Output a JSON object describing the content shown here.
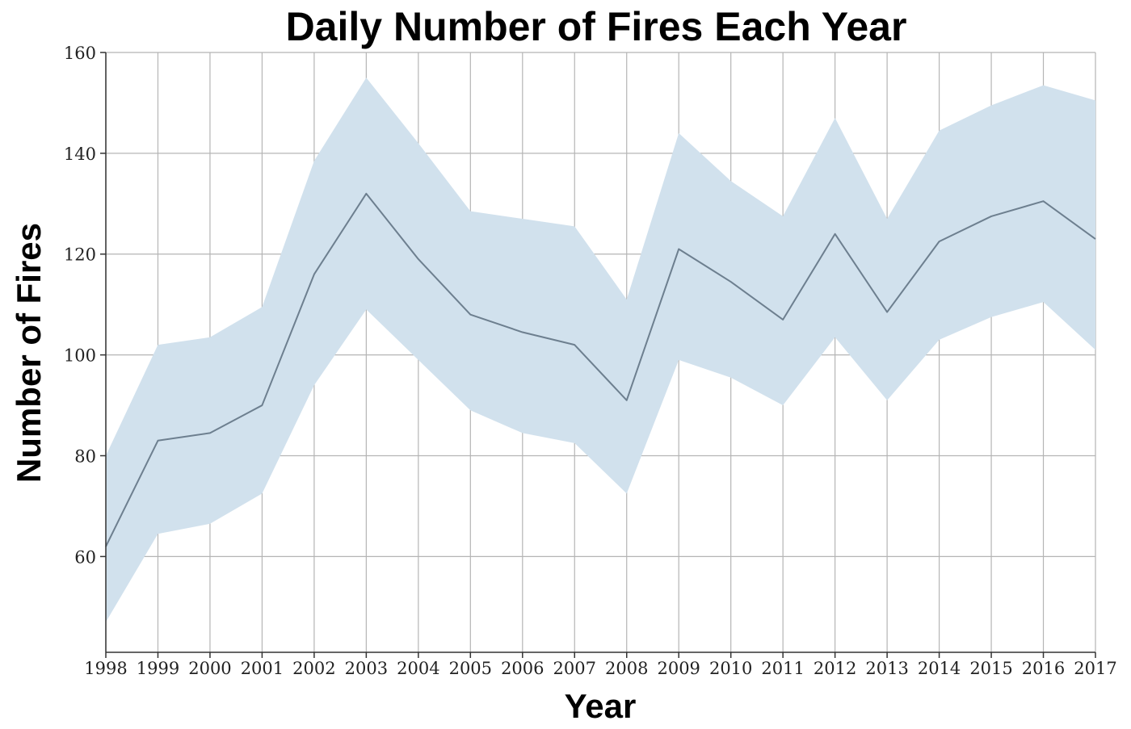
{
  "chart_data": {
    "type": "line",
    "title": "Daily Number of Fires Each Year",
    "xlabel": "Year",
    "ylabel": "Number of Fires",
    "x": [
      1998,
      1999,
      2000,
      2001,
      2002,
      2003,
      2004,
      2005,
      2006,
      2007,
      2008,
      2009,
      2010,
      2011,
      2012,
      2013,
      2014,
      2015,
      2016,
      2017
    ],
    "series": [
      {
        "values": [
          62,
          83,
          84.5,
          90,
          116,
          132,
          119,
          108,
          104.5,
          102,
          91,
          121,
          114.5,
          107,
          124,
          108.5,
          122.5,
          127.5,
          130.5,
          123
        ],
        "lower": [
          47,
          64.5,
          66.5,
          72.5,
          94,
          109,
          99,
          89,
          84.5,
          82.5,
          72.5,
          99,
          95.5,
          90,
          103.5,
          91,
          103,
          107.5,
          110.5,
          101
        ],
        "upper": [
          80,
          102,
          103.5,
          109.5,
          138.5,
          155,
          142,
          128.5,
          127,
          125.5,
          111,
          144,
          134.5,
          127.5,
          147,
          127,
          144.5,
          149.5,
          153.5,
          150.5
        ]
      }
    ],
    "ylim": [
      41,
      160
    ],
    "xlim": [
      1998,
      2017
    ],
    "yticks": [
      60,
      80,
      100,
      120,
      140,
      160
    ],
    "grid": true,
    "colors": {
      "line": "#6d7f8f",
      "band": "#d1e1ed"
    }
  }
}
